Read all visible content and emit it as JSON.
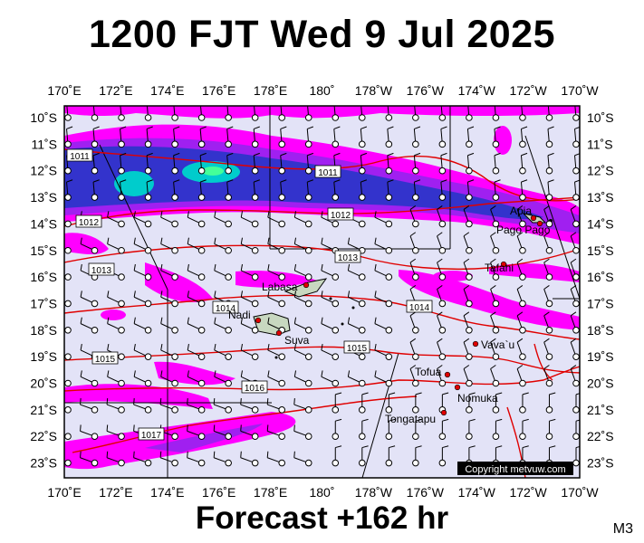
{
  "header": {
    "title": "1200 FJT Wed 9 Jul 2025"
  },
  "footer": {
    "forecast": "Forecast +162 hr",
    "model": "M3"
  },
  "map": {
    "lon_labels": [
      "170˚E",
      "172˚E",
      "174˚E",
      "176˚E",
      "178˚E",
      "180˚",
      "178˚W",
      "176˚W",
      "174˚W",
      "172˚W",
      "170˚W"
    ],
    "lat_labels": [
      "10˚S",
      "11˚S",
      "12˚S",
      "13˚S",
      "14˚S",
      "15˚S",
      "16˚S",
      "17˚S",
      "18˚S",
      "19˚S",
      "20˚S",
      "21˚S",
      "22˚S",
      "23˚S"
    ],
    "lat_labels_right": [
      "10˚S",
      "11˚S",
      "12˚S",
      "13˚S",
      "14˚S",
      "15˚S",
      "16˚S",
      "17˚S",
      "18˚S",
      "19˚S",
      "20˚S",
      "21˚S",
      "22˚S",
      "23˚S"
    ],
    "places": [
      {
        "name": "Apia"
      },
      {
        "name": "Pago Pago"
      },
      {
        "name": "Tafahi"
      },
      {
        "name": "Labasa"
      },
      {
        "name": "Nadi"
      },
      {
        "name": "Suva"
      },
      {
        "name": "Vava`u"
      },
      {
        "name": "Tofua"
      },
      {
        "name": "Nomuka"
      },
      {
        "name": "Tongatapu"
      }
    ],
    "isobars": [
      "1011",
      "1011",
      "1012",
      "1012",
      "1013",
      "1013",
      "1014",
      "1014",
      "1015",
      "1015",
      "1016",
      "1017"
    ],
    "copyright": "Copyright metvuw.com",
    "colors": {
      "background": "#e3e3f7",
      "rain_light": "#ff00ff",
      "rain_medium": "#a020f0",
      "rain_heavy": "#3333cc",
      "rain_extreme": "#00cccc",
      "isobar": "#e00000",
      "coast": "#000000",
      "land": "#c8d8c0"
    }
  }
}
